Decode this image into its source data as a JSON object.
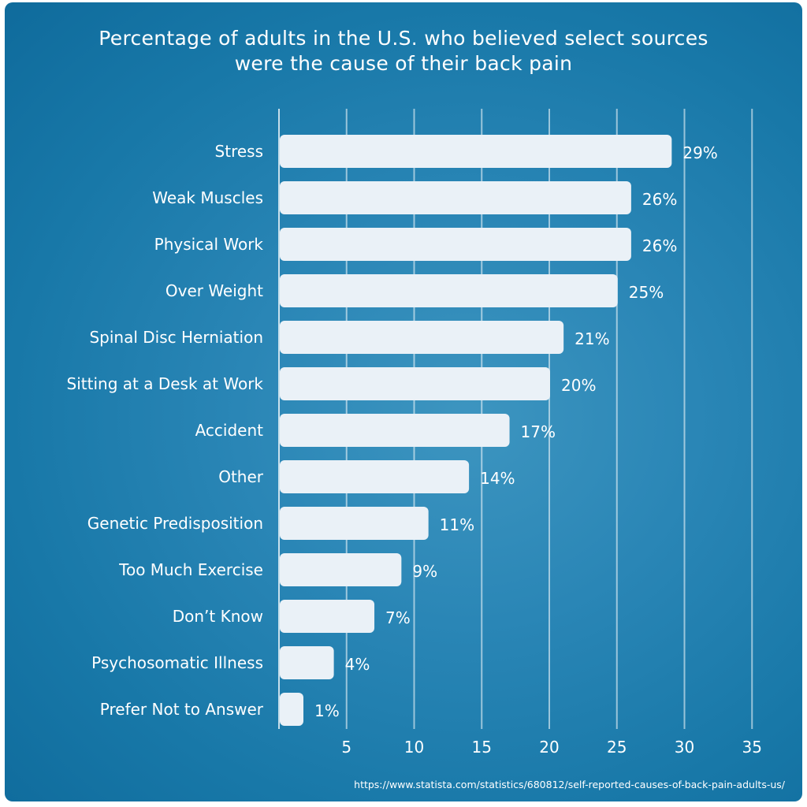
{
  "chart_data": {
    "type": "bar",
    "orientation": "horizontal",
    "title_line1": "Percentage of adults in the U.S. who believed select sources",
    "title_line2": "were the cause of their back pain",
    "categories": [
      "Stress",
      "Weak Muscles",
      "Physical Work",
      "Over Weight",
      "Spinal Disc Herniation",
      "Sitting at a Desk at Work",
      "Accident",
      "Other",
      "Genetic Predisposition",
      "Too Much Exercise",
      "Don’t Know",
      "Psychosomatic Illness",
      "Prefer Not to Answer"
    ],
    "values": [
      29,
      26,
      26,
      25,
      21,
      20,
      17,
      14,
      11,
      9,
      7,
      4,
      1
    ],
    "value_labels": [
      "29%",
      "26%",
      "26%",
      "25%",
      "21%",
      "20%",
      "17%",
      "14%",
      "11%",
      "9%",
      "7%",
      "4%",
      "1%"
    ],
    "xlim": [
      0,
      35
    ],
    "xticks": [
      5,
      10,
      15,
      20,
      25,
      30,
      35
    ],
    "grid": true,
    "colors": {
      "background": "#1a7aab",
      "bar": "#eaf1f7",
      "text": "#ffffff",
      "grid": "#ffffff"
    }
  },
  "source": "https://www.statista.com/statistics/680812/self-reported-causes-of-back-pain-adults-us/"
}
